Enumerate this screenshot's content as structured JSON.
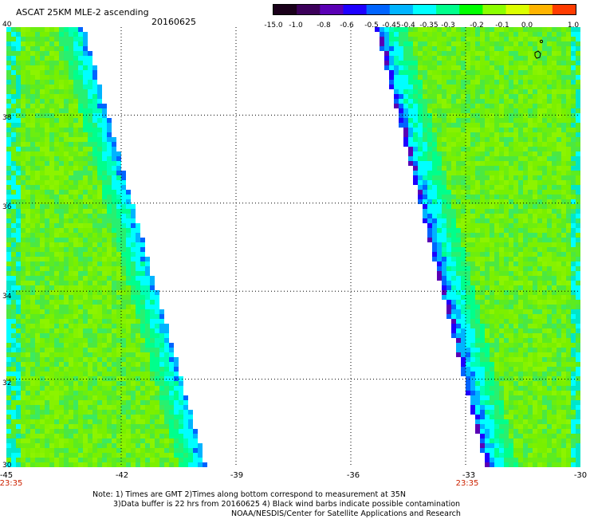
{
  "header": {
    "title": "ASCAT 25KM MLE-2 ascending",
    "date": "20160625"
  },
  "colorbar": {
    "tick_labels": [
      "-15.0",
      "-1.0",
      "-0.8",
      "-0.6",
      "-0.5",
      "-0.45",
      "-0.4",
      "-0.35",
      "-0.3",
      "-0.2",
      "-0.1",
      "0.0",
      "1.0"
    ],
    "colors": [
      "#1a001a",
      "#3c005a",
      "#5a00b4",
      "#1e00ff",
      "#0064ff",
      "#00b4ff",
      "#00ffff",
      "#00ff8c",
      "#00ff00",
      "#8cff00",
      "#dcff00",
      "#ffb400",
      "#ff3c00"
    ]
  },
  "axes": {
    "y_labels": [
      "40",
      "38",
      "36",
      "34",
      "32",
      "30"
    ],
    "x_labels": [
      "-45",
      "-42",
      "-39",
      "-36",
      "-33",
      "-30"
    ],
    "time_labels": [
      "23:35",
      "23:35"
    ]
  },
  "notes": {
    "line1": "Note: 1) Times are GMT 2)Times along bottom correspond to measurement at 35N",
    "line2": "3)Data buffer is 22 hrs from 20160625 4) Black wind barbs indicate possible contamination",
    "line3": "NOAA/NESDIS/Center for Satellite Applications and Research"
  },
  "chart_data": {
    "type": "heatmap",
    "title": "ASCAT 25KM MLE-2 ascending",
    "date": "20160625",
    "x_range": [
      -45,
      -30
    ],
    "y_range": [
      30,
      40
    ],
    "swaths": [
      {
        "label": "west swath",
        "time": "23:35",
        "lon_left": -45,
        "east_edge_lon_at_lat40": -42.9,
        "east_edge_lon_at_lat30": -39.7
      },
      {
        "label": "east swath",
        "time": "23:35",
        "west_edge_lon_at_lat40": -35.4,
        "west_edge_lon_at_lat30": -32.5,
        "lon_right": -30
      }
    ],
    "value_range": [
      -15.0,
      1.0
    ],
    "dominant_values": [
      -0.35,
      -0.3
    ],
    "edge_values": [
      -0.45,
      -0.5,
      -0.6,
      -0.8,
      -1.0
    ]
  }
}
